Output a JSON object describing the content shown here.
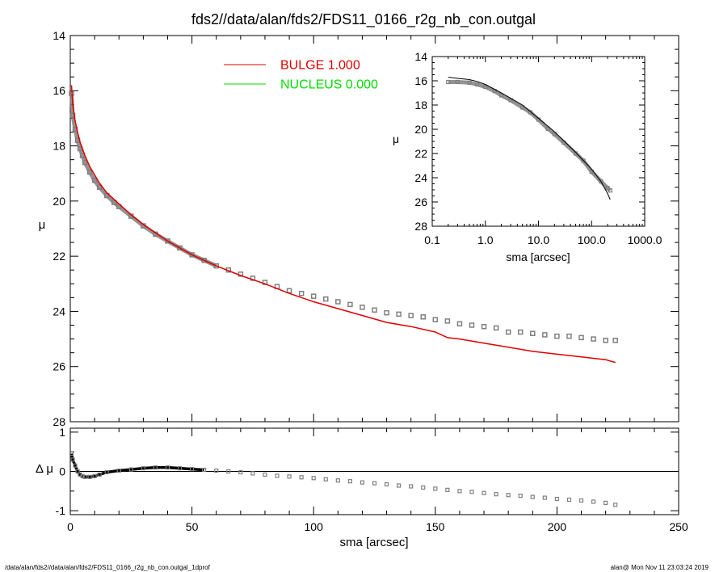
{
  "title": "fds2//data/alan/fds2/FDS11_0166_r2g_nb_con.outgal",
  "footer": {
    "left": "/data/alan/fds2//data/alan/fds2/FDS11_0166_r2g_nb_con.outgal_1dprof",
    "right": "alan@  Mon Nov 11 23:03:24 2019"
  },
  "legend": [
    {
      "label": "BULGE  1.000",
      "color": "#e00000"
    },
    {
      "label": "NUCLEUS  0.000",
      "color": "#00e000"
    }
  ],
  "colors": {
    "data_points": "#808080",
    "bulge": "#e00000",
    "nucleus": "#00e000",
    "model_inset": "#000000"
  },
  "chart_data": [
    {
      "type": "scatter",
      "panel": "main",
      "xlabel": "sma [arcsec]",
      "ylabel": "μ",
      "xlim": [
        0,
        250
      ],
      "ylim": [
        28,
        14
      ],
      "y_inverted": true,
      "xticks": [
        "0",
        "50",
        "100",
        "150",
        "200",
        "250"
      ],
      "yticks": [
        "14",
        "16",
        "18",
        "20",
        "22",
        "24",
        "26",
        "28"
      ],
      "series": [
        {
          "name": "data",
          "style": "grey open squares",
          "x": [
            0.5,
            1,
            2,
            3,
            4,
            5,
            6,
            8,
            10,
            12,
            15,
            18,
            20,
            25,
            30,
            35,
            40,
            45,
            50,
            55,
            60,
            65,
            70,
            75,
            80,
            85,
            90,
            95,
            100,
            105,
            110,
            115,
            120,
            125,
            130,
            135,
            140,
            145,
            150,
            155,
            160,
            165,
            170,
            175,
            180,
            185,
            190,
            195,
            200,
            205,
            210,
            215,
            220,
            224
          ],
          "y": [
            16.1,
            16.9,
            17.4,
            17.8,
            18.1,
            18.35,
            18.6,
            18.95,
            19.25,
            19.5,
            19.8,
            20.05,
            20.2,
            20.55,
            20.9,
            21.2,
            21.45,
            21.7,
            21.95,
            22.15,
            22.35,
            22.5,
            22.65,
            22.8,
            22.95,
            23.1,
            23.25,
            23.35,
            23.45,
            23.55,
            23.65,
            23.75,
            23.85,
            23.95,
            24.05,
            24.1,
            24.15,
            24.2,
            24.3,
            24.35,
            24.45,
            24.5,
            24.55,
            24.6,
            24.75,
            24.75,
            24.8,
            24.85,
            24.9,
            24.9,
            24.95,
            25.0,
            25.05,
            25.05
          ]
        },
        {
          "name": "BULGE  1.000",
          "style": "red line",
          "x": [
            0.5,
            1,
            2,
            3,
            4,
            5,
            6,
            8,
            10,
            12,
            15,
            20,
            25,
            30,
            40,
            50,
            60,
            70,
            80,
            90,
            100,
            110,
            120,
            130,
            140,
            150,
            155,
            160,
            170,
            180,
            190,
            200,
            210,
            220,
            224
          ],
          "y": [
            15.8,
            16.5,
            17.1,
            17.5,
            17.85,
            18.1,
            18.35,
            18.75,
            19.05,
            19.35,
            19.7,
            20.1,
            20.5,
            20.85,
            21.45,
            21.95,
            22.35,
            22.7,
            23.0,
            23.35,
            23.65,
            23.9,
            24.15,
            24.4,
            24.55,
            24.75,
            24.95,
            25.0,
            25.15,
            25.3,
            25.45,
            25.55,
            25.65,
            25.75,
            25.85
          ]
        }
      ]
    },
    {
      "type": "scatter",
      "panel": "residual",
      "ylabel": "Δ μ",
      "xlim": [
        0,
        250
      ],
      "ylim": [
        -1.1,
        1.1
      ],
      "yticks": [
        "1",
        "0",
        "-1"
      ],
      "series": [
        {
          "name": "residual",
          "style": "grey open squares",
          "x": [
            0.5,
            1,
            2,
            3,
            4,
            5,
            6,
            8,
            10,
            12,
            15,
            20,
            25,
            30,
            35,
            40,
            45,
            50,
            55,
            60,
            65,
            70,
            75,
            80,
            85,
            90,
            95,
            100,
            105,
            110,
            115,
            120,
            125,
            130,
            135,
            140,
            145,
            150,
            155,
            160,
            165,
            170,
            175,
            180,
            185,
            190,
            195,
            200,
            205,
            210,
            215,
            220,
            224
          ],
          "y": [
            0.45,
            0.3,
            0.15,
            0.0,
            -0.08,
            -0.12,
            -0.14,
            -0.14,
            -0.12,
            -0.08,
            -0.02,
            0.02,
            0.05,
            0.08,
            0.1,
            0.1,
            0.08,
            0.06,
            0.04,
            0.02,
            0.0,
            -0.02,
            -0.05,
            -0.08,
            -0.11,
            -0.13,
            -0.15,
            -0.17,
            -0.2,
            -0.23,
            -0.25,
            -0.28,
            -0.3,
            -0.33,
            -0.36,
            -0.38,
            -0.41,
            -0.44,
            -0.47,
            -0.5,
            -0.52,
            -0.55,
            -0.58,
            -0.6,
            -0.62,
            -0.65,
            -0.67,
            -0.7,
            -0.72,
            -0.74,
            -0.77,
            -0.8,
            -0.85
          ]
        }
      ]
    },
    {
      "type": "scatter",
      "panel": "inset",
      "xlabel": "sma [arcsec]",
      "ylabel": "μ",
      "x_scale": "log",
      "xlim": [
        0.1,
        1000
      ],
      "ylim": [
        28,
        14
      ],
      "y_inverted": true,
      "xticks": [
        "0.1",
        "1.0",
        "10.0",
        "100.0",
        "1000.0"
      ],
      "yticks": [
        "14",
        "16",
        "18",
        "20",
        "22",
        "24",
        "26",
        "28"
      ],
      "series": [
        {
          "name": "data",
          "style": "grey open squares",
          "x": [
            0.2,
            0.3,
            0.5,
            0.7,
            1,
            1.5,
            2,
            3,
            5,
            7,
            10,
            15,
            20,
            30,
            50,
            70,
            100,
            150,
            200,
            224
          ],
          "y": [
            16.1,
            16.1,
            16.15,
            16.3,
            16.5,
            16.85,
            17.2,
            17.6,
            18.2,
            18.6,
            19.2,
            19.95,
            20.4,
            21.1,
            22.0,
            22.6,
            23.5,
            24.3,
            24.85,
            25.05
          ]
        },
        {
          "name": "model",
          "style": "black line",
          "x": [
            0.2,
            0.3,
            0.5,
            0.7,
            1,
            2,
            5,
            10,
            20,
            50,
            100,
            150,
            200,
            224
          ],
          "y": [
            15.7,
            15.8,
            15.9,
            16.05,
            16.3,
            17.0,
            18.0,
            19.1,
            20.2,
            21.9,
            23.3,
            24.3,
            25.3,
            25.8
          ]
        }
      ]
    }
  ]
}
